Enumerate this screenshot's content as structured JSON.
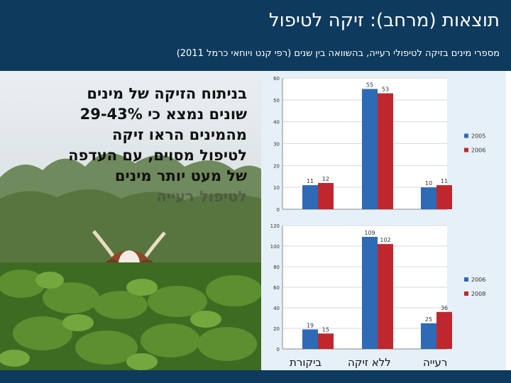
{
  "slide": {
    "title": "תוצאות (מרחב): זיקה לטיפול",
    "subtitle": "מספרי מינים בזיקה לטיפולי רעייה, בהשוואה בין שנים (רפי קנט ויוחאי כרמל 2011)",
    "body_lines": [
      "בניתוח הזיקה של מינים",
      "שונים נמצא כי 29-43%",
      "מהמינים הראו זיקה",
      "לטיפול מסוים, עם העדפה",
      "של מעט יותר מינים"
    ],
    "body_overflow_line": "לטיפול רעייה",
    "category_labels": [
      "ביקורת",
      "ללא זיקה",
      "רעייה"
    ]
  },
  "chart_data": [
    {
      "type": "bar",
      "categories": [
        "ביקורת",
        "ללא זיקה",
        "רעייה"
      ],
      "series": [
        {
          "name": "2005",
          "values": [
            11,
            55,
            10
          ],
          "color": "#2e6ab5"
        },
        {
          "name": "2006",
          "values": [
            12,
            53,
            11
          ],
          "color": "#c0272d"
        }
      ],
      "data_labels": [
        [
          "11",
          "55",
          "10"
        ],
        [
          "12",
          "53",
          "11"
        ]
      ],
      "ylim": [
        0,
        60
      ],
      "yticks": [
        0,
        10,
        20,
        30,
        40,
        50,
        60
      ],
      "legend": "right"
    },
    {
      "type": "bar",
      "categories": [
        "ביקורת",
        "ללא זיקה",
        "רעייה"
      ],
      "series": [
        {
          "name": "2006",
          "values": [
            19,
            109,
            25
          ],
          "color": "#2e6ab5"
        },
        {
          "name": "2008",
          "values": [
            15,
            102,
            36
          ],
          "color": "#c0272d"
        }
      ],
      "data_labels": [
        [
          "19",
          "109",
          "25"
        ],
        [
          "15",
          "102",
          "36"
        ]
      ],
      "ylim": [
        0,
        120
      ],
      "yticks": [
        0,
        20,
        40,
        60,
        80,
        100,
        120
      ],
      "legend": "right"
    }
  ],
  "colors": {
    "header": "#0e3a5e",
    "series_blue": "#2e6ab5",
    "series_red": "#c0272d"
  }
}
